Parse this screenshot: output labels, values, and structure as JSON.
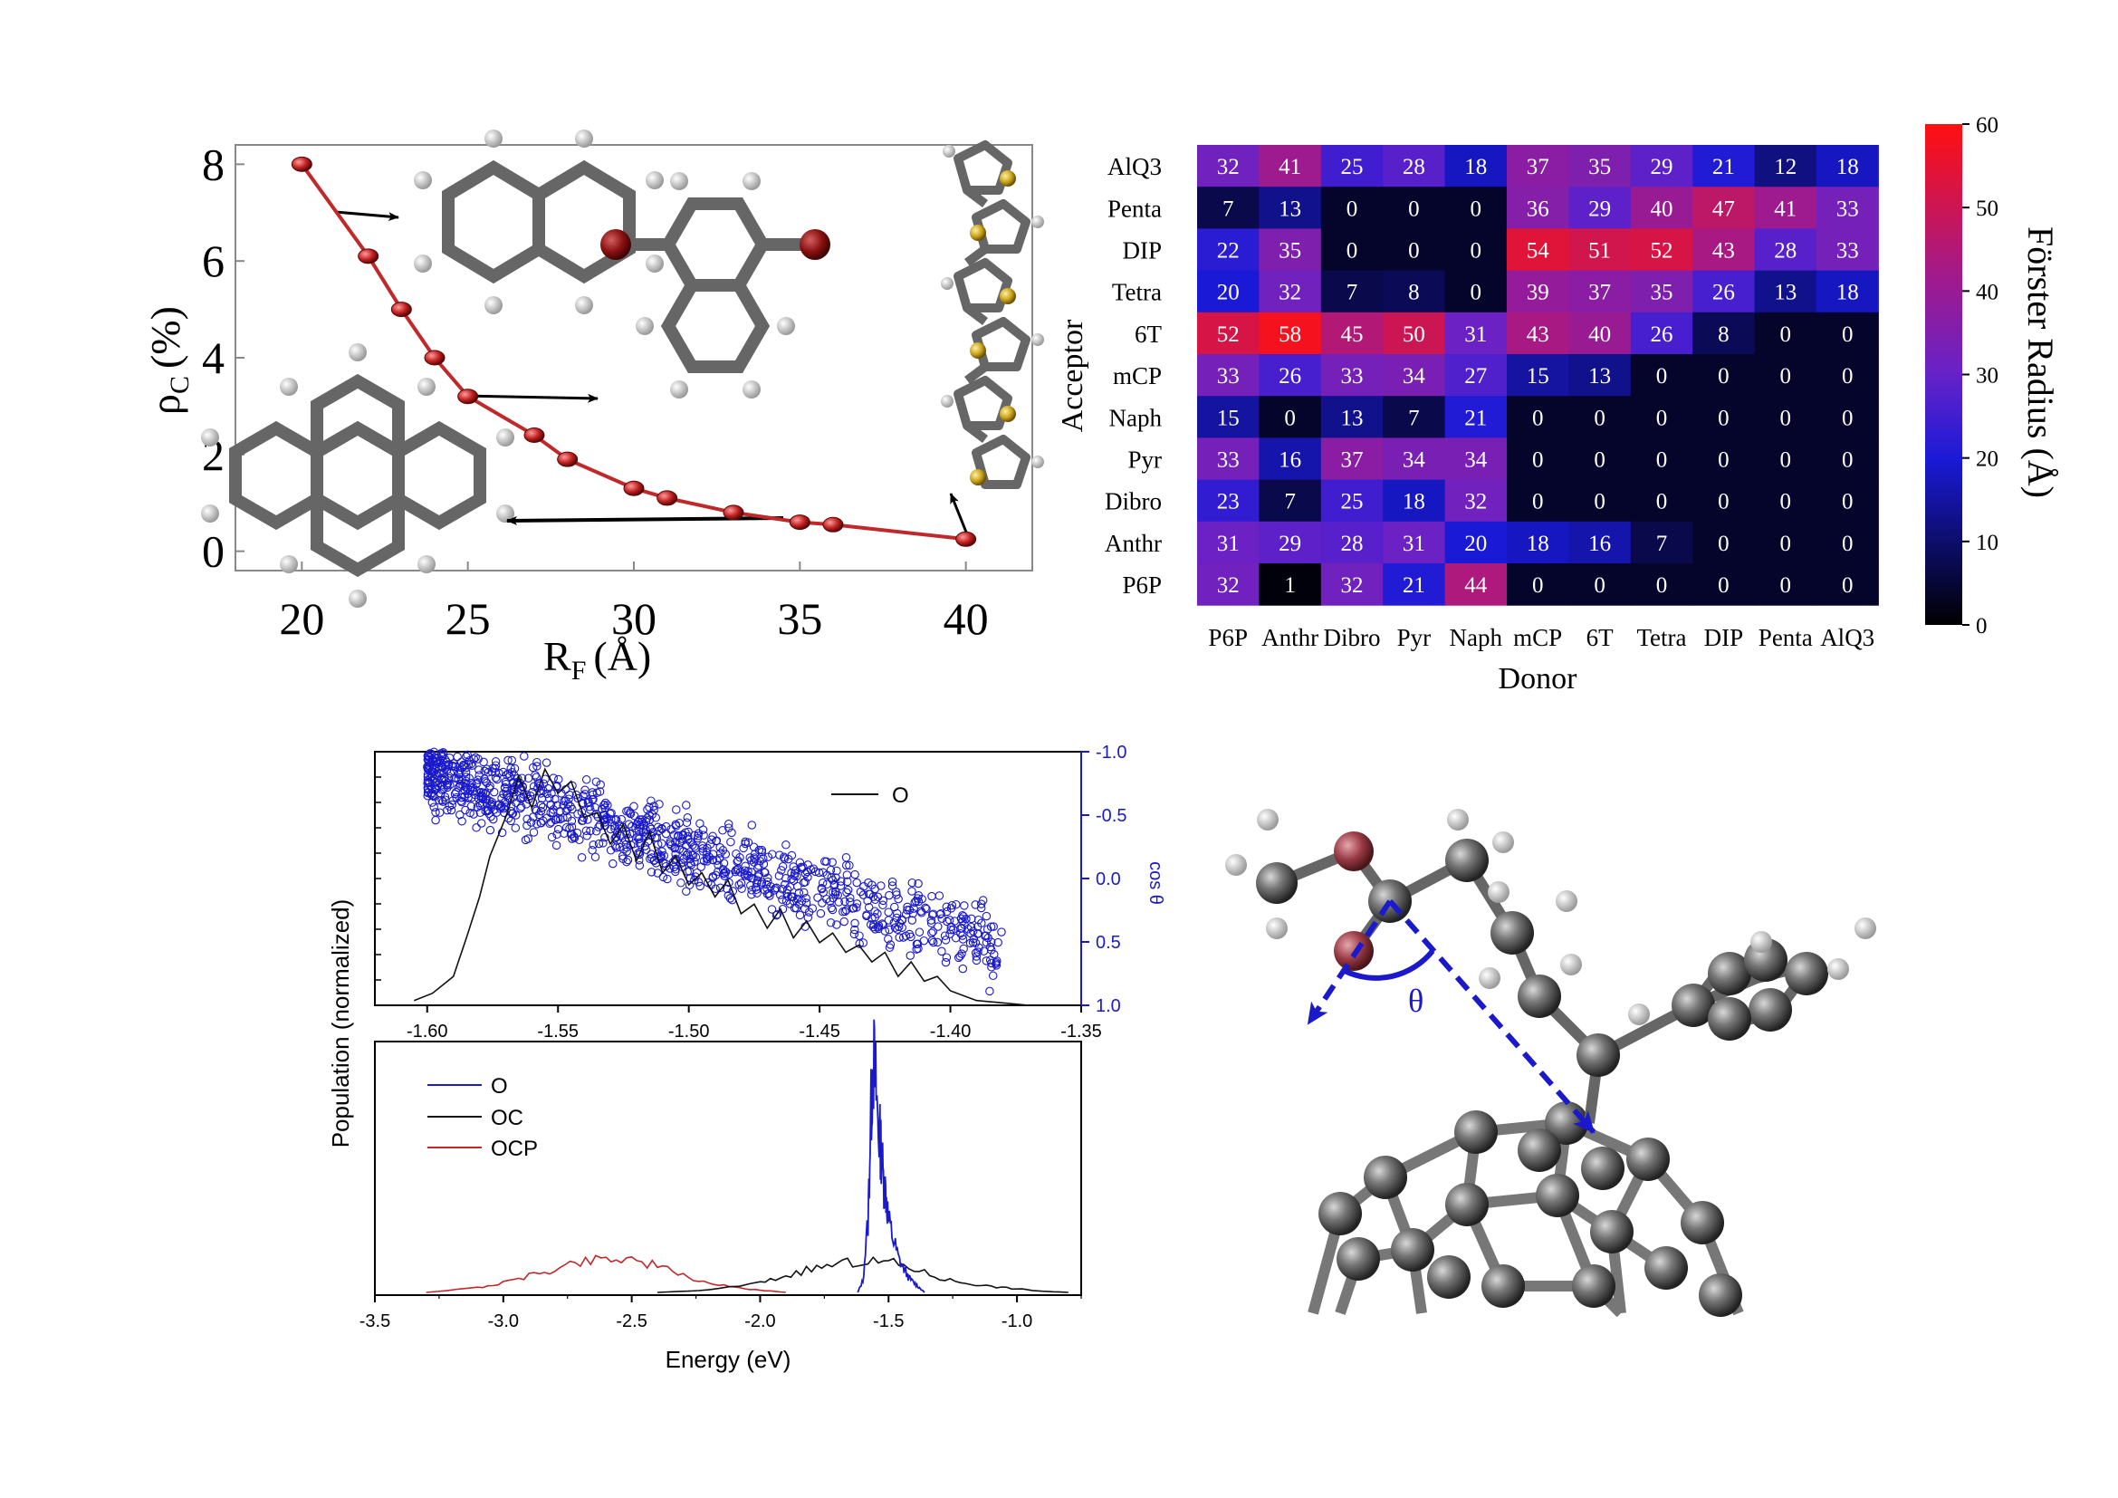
{
  "colors": {
    "curve": "#c0282a",
    "marker": "#b21e22",
    "blue": "#1a1acc",
    "axis": "#1a1acc",
    "atom_o": "#a84650",
    "atom_c": "#555555"
  },
  "chart_data": [
    {
      "id": "rho-vs-rf",
      "type": "line",
      "xlabel_main": "R",
      "xlabel_sub": "F",
      "xlabel_unit": "(Å)",
      "ylabel_main": "ρ",
      "ylabel_sub": "C",
      "ylabel_unit": "(%)",
      "xlim": [
        18,
        42
      ],
      "ylim": [
        -0.4,
        8.4
      ],
      "xticks": [
        20,
        25,
        30,
        35,
        40
      ],
      "yticks": [
        0,
        2,
        4,
        6,
        8
      ],
      "x": [
        20,
        22,
        23,
        24,
        25,
        27,
        28,
        30,
        31,
        33,
        35,
        36,
        40
      ],
      "y": [
        8.0,
        6.1,
        5.0,
        4.0,
        3.2,
        2.4,
        1.9,
        1.3,
        1.1,
        0.8,
        0.6,
        0.55,
        0.25
      ],
      "molecule_icons": [
        "naphthalene-icon",
        "dibromo-naphthalene-icon",
        "pyrene-icon",
        "sexithiophene-icon"
      ]
    },
    {
      "id": "forster-heatmap",
      "type": "heatmap",
      "xlabel": "Donor",
      "ylabel": "Acceptor",
      "donors": [
        "P6P",
        "Anthr",
        "Dibro",
        "Pyr",
        "Naph",
        "mCP",
        "6T",
        "Tetra",
        "DIP",
        "Penta",
        "AlQ3"
      ],
      "acceptors": [
        "AlQ3",
        "Penta",
        "DIP",
        "Tetra",
        "6T",
        "mCP",
        "Naph",
        "Pyr",
        "Dibro",
        "Anthr",
        "P6P"
      ],
      "values": [
        [
          32,
          41,
          25,
          28,
          18,
          37,
          35,
          29,
          21,
          12,
          18
        ],
        [
          7,
          13,
          0,
          0,
          0,
          36,
          29,
          40,
          47,
          41,
          33
        ],
        [
          22,
          35,
          0,
          0,
          0,
          54,
          51,
          52,
          43,
          28,
          33
        ],
        [
          20,
          32,
          7,
          8,
          0,
          39,
          37,
          35,
          26,
          13,
          18
        ],
        [
          52,
          58,
          45,
          50,
          31,
          43,
          40,
          26,
          8,
          0,
          0
        ],
        [
          33,
          26,
          33,
          34,
          27,
          15,
          13,
          0,
          0,
          0,
          0
        ],
        [
          15,
          0,
          13,
          7,
          21,
          0,
          0,
          0,
          0,
          0,
          0
        ],
        [
          33,
          16,
          37,
          34,
          34,
          0,
          0,
          0,
          0,
          0,
          0
        ],
        [
          23,
          7,
          25,
          18,
          32,
          0,
          0,
          0,
          0,
          0,
          0
        ],
        [
          31,
          29,
          28,
          31,
          20,
          18,
          16,
          7,
          0,
          0,
          0
        ],
        [
          32,
          1,
          32,
          21,
          44,
          0,
          0,
          0,
          0,
          0,
          0
        ]
      ],
      "colorbar": {
        "label": "Förster Radius (Å)",
        "range": [
          0,
          60
        ],
        "ticks": [
          0,
          10,
          20,
          30,
          40,
          50,
          60
        ]
      }
    },
    {
      "id": "population-cos-theta",
      "type": "scatter",
      "xlim": [
        -1.62,
        -1.35
      ],
      "xticks": [
        "-1.60",
        "-1.55",
        "-1.50",
        "-1.45",
        "-1.40",
        "-1.35"
      ],
      "xtick_values": [
        -1.6,
        -1.55,
        -1.5,
        -1.45,
        -1.4,
        -1.35
      ],
      "right_ylabel": "cos θ",
      "right_yticks": [
        "-1.0",
        "-0.5",
        "0.0",
        "0.5",
        "1.0"
      ],
      "right_ytick_values": [
        -1.0,
        -0.5,
        0.0,
        0.5,
        1.0
      ],
      "legend": [
        "O"
      ],
      "scatter_trend": {
        "x_start": -1.6,
        "cos_start": -0.85,
        "x_end": -1.38,
        "cos_end": 0.55,
        "spread": 0.28
      },
      "population_curve": {
        "x": [
          -1.605,
          -1.598,
          -1.59,
          -1.585,
          -1.58,
          -1.576,
          -1.57,
          -1.565,
          -1.56,
          -1.555,
          -1.55,
          -1.545,
          -1.54,
          -1.535,
          -1.53,
          -1.525,
          -1.52,
          -1.515,
          -1.51,
          -1.505,
          -1.5,
          -1.495,
          -1.49,
          -1.485,
          -1.48,
          -1.475,
          -1.47,
          -1.465,
          -1.46,
          -1.455,
          -1.45,
          -1.445,
          -1.44,
          -1.435,
          -1.43,
          -1.425,
          -1.42,
          -1.415,
          -1.41,
          -1.405,
          -1.4,
          -1.395,
          -1.39,
          -1.38,
          -1.37
        ],
        "y": [
          0.02,
          0.05,
          0.12,
          0.28,
          0.45,
          0.62,
          0.78,
          0.95,
          0.82,
          0.98,
          0.88,
          0.93,
          0.78,
          0.8,
          0.67,
          0.75,
          0.6,
          0.72,
          0.55,
          0.62,
          0.5,
          0.55,
          0.45,
          0.52,
          0.38,
          0.42,
          0.32,
          0.4,
          0.28,
          0.35,
          0.26,
          0.3,
          0.22,
          0.25,
          0.18,
          0.22,
          0.12,
          0.18,
          0.1,
          0.12,
          0.06,
          0.04,
          0.02,
          0.01,
          0.0
        ]
      }
    },
    {
      "id": "population-energy",
      "type": "line",
      "xlabel": "Energy (eV)",
      "shared_ylabel": "Population (normalized)",
      "xlim": [
        -3.5,
        -0.75
      ],
      "xticks": [
        "-3.5",
        "-3.0",
        "-2.5",
        "-2.0",
        "-1.5",
        "-1.0"
      ],
      "xtick_values": [
        -3.5,
        -3.0,
        -2.5,
        -2.0,
        -1.5,
        -1.0
      ],
      "series": [
        {
          "name": "O",
          "color": "#1a1acc",
          "x": [
            -1.62,
            -1.6,
            -1.58,
            -1.57,
            -1.56,
            -1.55,
            -1.54,
            -1.53,
            -1.52,
            -1.51,
            -1.5,
            -1.48,
            -1.46,
            -1.44,
            -1.42,
            -1.4,
            -1.38,
            -1.36
          ],
          "y": [
            0.0,
            0.05,
            0.3,
            0.72,
            1.0,
            0.88,
            0.7,
            0.62,
            0.48,
            0.42,
            0.3,
            0.22,
            0.14,
            0.1,
            0.06,
            0.04,
            0.02,
            0.0
          ]
        },
        {
          "name": "OC",
          "color": "#111111",
          "x": [
            -2.4,
            -2.2,
            -2.0,
            -1.9,
            -1.8,
            -1.7,
            -1.6,
            -1.5,
            -1.4,
            -1.3,
            -1.2,
            -1.1,
            -1.0,
            -0.9,
            -0.8
          ],
          "y": [
            0.0,
            0.01,
            0.04,
            0.07,
            0.1,
            0.12,
            0.13,
            0.13,
            0.1,
            0.06,
            0.04,
            0.025,
            0.015,
            0.005,
            0.0
          ]
        },
        {
          "name": "OCP",
          "color": "#c0282a",
          "x": [
            -3.3,
            -3.1,
            -3.0,
            -2.9,
            -2.8,
            -2.7,
            -2.6,
            -2.5,
            -2.4,
            -2.3,
            -2.2,
            -2.1,
            -2.0,
            -1.9
          ],
          "y": [
            0.0,
            0.02,
            0.04,
            0.07,
            0.1,
            0.13,
            0.15,
            0.14,
            0.11,
            0.07,
            0.04,
            0.02,
            0.01,
            0.0
          ]
        }
      ]
    }
  ],
  "geometry_panel": {
    "angle_label": "θ",
    "molecule_icon": "adsorbed-molecule-on-fullerene-icon"
  }
}
